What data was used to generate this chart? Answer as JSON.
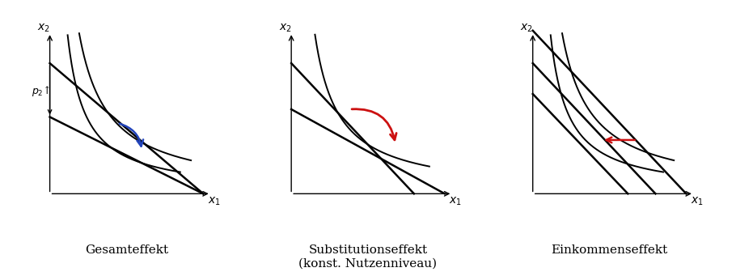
{
  "panel_titles": [
    "Gesamteffekt",
    "Substitutionseffekt\n(konst. Nutzenniveau)",
    "Einkommenseffekt"
  ],
  "bg_color": "#ffffff",
  "line_color": "#000000",
  "arrow_blue": "#2244bb",
  "arrow_red": "#cc1111",
  "figsize": [
    9.1,
    3.36
  ],
  "dpi": 100
}
